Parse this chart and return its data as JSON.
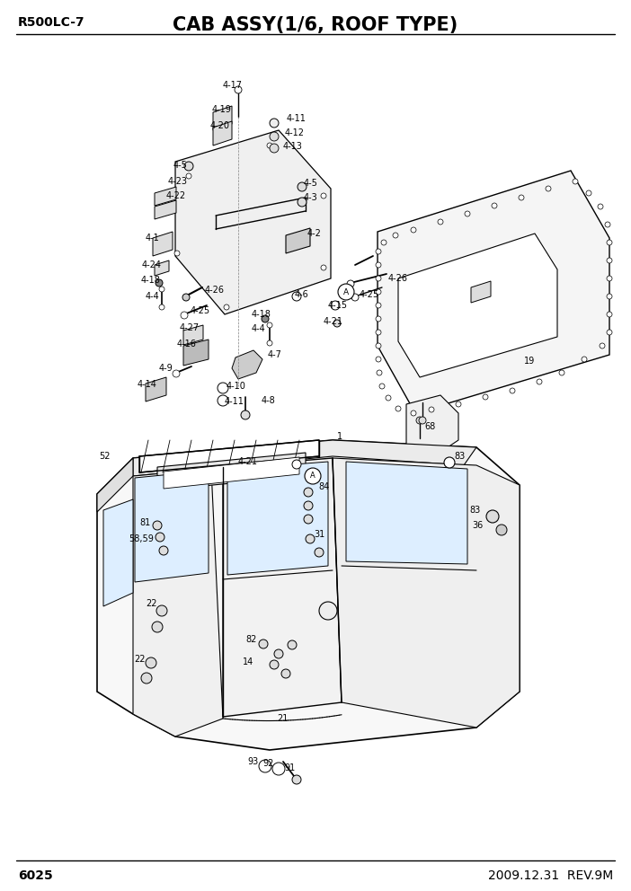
{
  "title": "CAB ASSY(1/6, ROOF TYPE)",
  "model": "R500LC-7",
  "page": "6025",
  "date": "2009.12.31  REV.9M",
  "bg_color": "#ffffff",
  "label_fontsize": 7.0,
  "header_fontsize": 10,
  "title_fontsize": 15
}
